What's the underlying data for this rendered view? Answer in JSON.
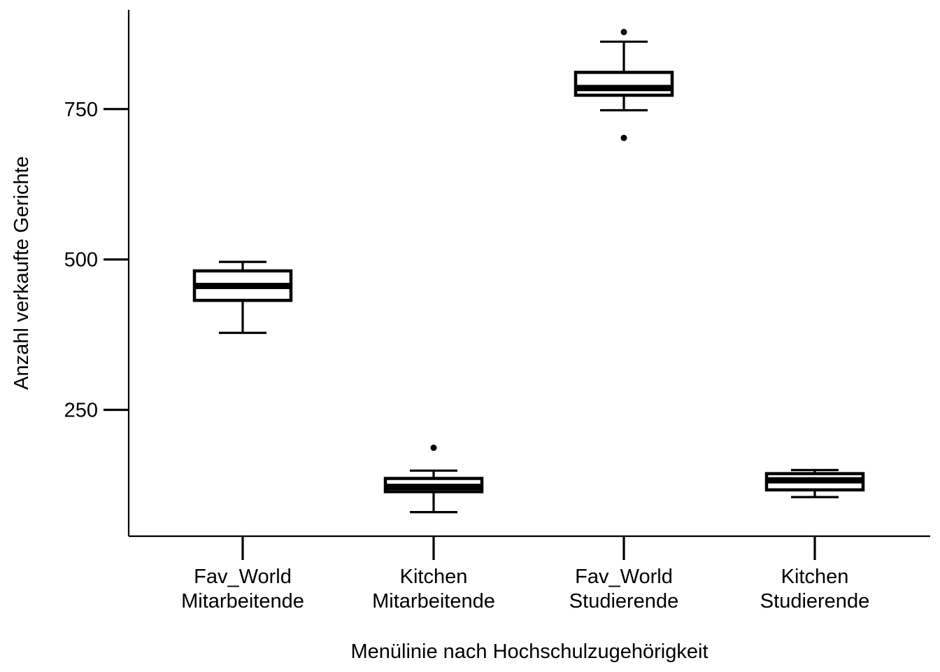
{
  "chart_data": {
    "type": "boxplot",
    "title": "",
    "xlabel": "Menülinie nach Hochschulzugehörigkeit",
    "ylabel": "Anzahl verkaufte Gerichte",
    "ylim": [
      40,
      915
    ],
    "yticks": [
      250,
      500,
      750
    ],
    "grid": false,
    "categories": [
      [
        "Fav_World",
        "Mitarbeitende"
      ],
      [
        "Kitchen",
        "Mitarbeitende"
      ],
      [
        "Fav_World",
        "Studierende"
      ],
      [
        "Kitchen",
        "Studierende"
      ]
    ],
    "boxes": [
      {
        "whisker_low": 378,
        "q1": 432,
        "median": 456,
        "q3": 481,
        "whisker_high": 496,
        "outliers": []
      },
      {
        "whisker_low": 80,
        "q1": 114,
        "median": 122,
        "q3": 136,
        "whisker_high": 149,
        "outliers": [
          187
        ]
      },
      {
        "whisker_low": 748,
        "q1": 773,
        "median": 785,
        "q3": 811,
        "whisker_high": 862,
        "outliers": [
          878,
          702
        ]
      },
      {
        "whisker_low": 105,
        "q1": 117,
        "median": 133,
        "q3": 144,
        "whisker_high": 150,
        "outliers": []
      }
    ]
  }
}
